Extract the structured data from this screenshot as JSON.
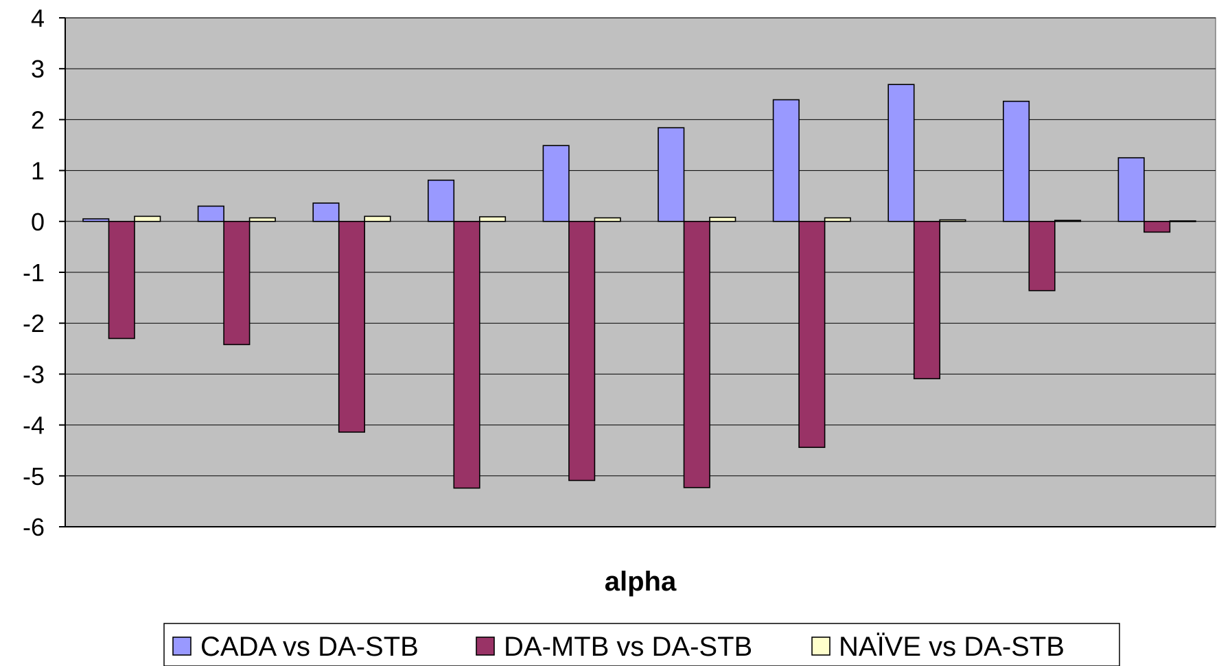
{
  "chart_data": {
    "type": "bar",
    "title": "",
    "xlabel": "alpha",
    "ylabel": "",
    "ylim": [
      -6,
      4
    ],
    "yticks": [
      4,
      3,
      2,
      1,
      0,
      -1,
      -2,
      -3,
      -4,
      -5,
      -6
    ],
    "grid": true,
    "legend_position": "bottom",
    "categories": [
      "",
      "",
      "",
      "",
      "",
      "",
      "",
      "",
      "",
      ""
    ],
    "series": [
      {
        "name": "CADA vs DA-STB",
        "color": "#9999ff",
        "values": [
          0.05,
          0.3,
          0.36,
          0.81,
          1.49,
          1.84,
          2.39,
          2.69,
          2.36,
          1.25
        ]
      },
      {
        "name": "DA-MTB vs DA-STB",
        "color": "#993366",
        "values": [
          -2.3,
          -2.42,
          -4.14,
          -5.24,
          -5.09,
          -5.23,
          -4.44,
          -3.09,
          -1.36,
          -0.21
        ]
      },
      {
        "name": "NAÏVE vs DA-STB",
        "color": "#ffffcc",
        "values": [
          0.1,
          0.07,
          0.1,
          0.09,
          0.07,
          0.08,
          0.07,
          0.03,
          0.02,
          0.01
        ]
      }
    ],
    "colors": {
      "plot_background": "#c0c0c0",
      "gridline": "#000000",
      "bar_outline": "#000000"
    }
  }
}
